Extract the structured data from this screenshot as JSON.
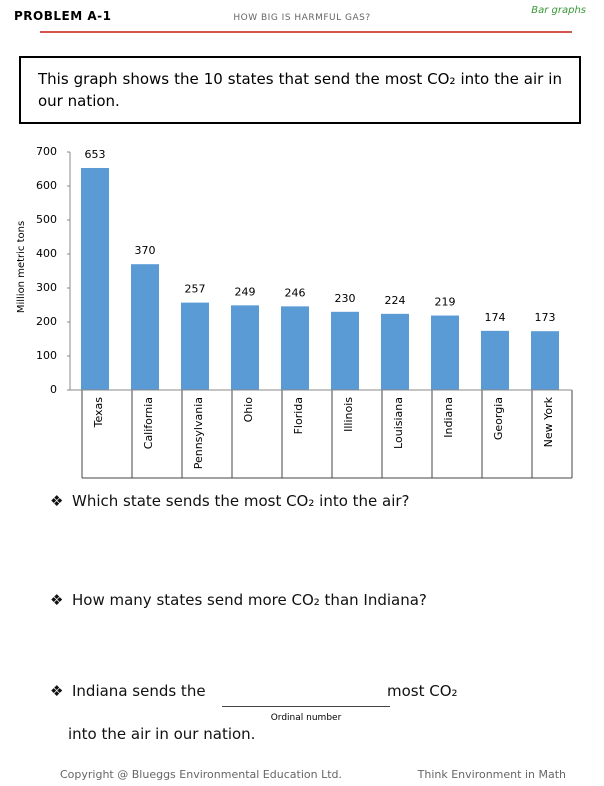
{
  "header": {
    "problem": "PROBLEM A-1",
    "title": "HOW BIG IS HARMFUL GAS?",
    "topic": "Bar graphs"
  },
  "intro": "This graph shows the 10 states that send the most CO₂ into the air in our nation.",
  "chart_data": {
    "type": "bar",
    "y_label": "Million metric tons",
    "categories": [
      "Texas",
      "California",
      "Pennsylvania",
      "Ohio",
      "Florida",
      "Illinois",
      "Louisiana",
      "Indiana",
      "Georgia",
      "New York"
    ],
    "values": [
      653,
      370,
      257,
      249,
      246,
      230,
      224,
      219,
      174,
      173
    ],
    "color": "#5b9bd5",
    "ylim": [
      0,
      700
    ],
    "yticks": [
      0,
      100,
      200,
      300,
      400,
      500,
      600,
      700
    ],
    "grid": false
  },
  "bullet": "❖",
  "questions": [
    "Which state sends the most CO₂ into the air?",
    "How many states send more CO₂ than Indiana?",
    {
      "before": "Indiana sends the",
      "after": "most CO₂",
      "hint": "Ordinal number",
      "continuation": "into the air in our nation."
    }
  ],
  "footer": {
    "copyright": "Copyright @ Blueggs Environmental Education Ltd.",
    "tagline": "Think Environment in Math"
  }
}
